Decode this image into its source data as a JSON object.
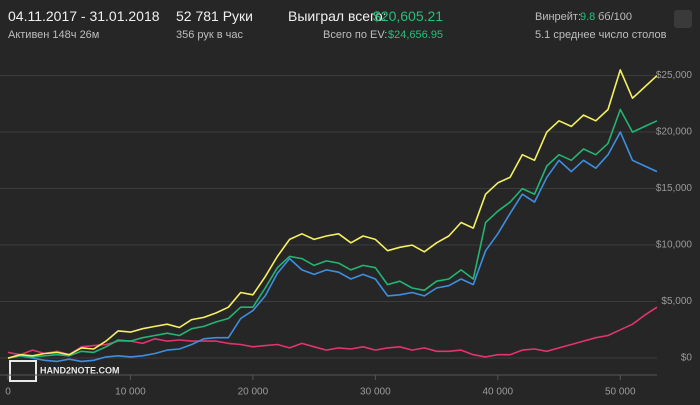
{
  "header": {
    "dates": "04.11.2017 - 31.01.2018",
    "active": "Активен 148ч 26м",
    "hands": "52 781 Руки",
    "rate": "356 рук в час",
    "won_label": "Выиграл всего:",
    "won_value": "$20,605.21",
    "ev_label": "Всего по EV:",
    "ev_value": "$24,656.95",
    "winrate_label": "Винрейт:",
    "winrate_value": "9.8",
    "winrate_unit": "бб/100",
    "tables": "5.1 среднее число столов",
    "logo": "HAND2NOTE.COM"
  },
  "chart_data": {
    "type": "line",
    "x": [
      0,
      1000,
      2000,
      3000,
      4000,
      5000,
      6000,
      7000,
      8000,
      9000,
      10000,
      11000,
      12000,
      13000,
      14000,
      15000,
      16000,
      17000,
      18000,
      19000,
      20000,
      21000,
      22000,
      23000,
      24000,
      25000,
      26000,
      27000,
      28000,
      29000,
      30000,
      31000,
      32000,
      33000,
      34000,
      35000,
      36000,
      37000,
      38000,
      39000,
      40000,
      41000,
      42000,
      43000,
      44000,
      45000,
      46000,
      47000,
      48000,
      49000,
      50000,
      51000,
      52000,
      53000
    ],
    "series": [
      {
        "color": "#f5f060",
        "values": [
          0,
          300,
          200,
          400,
          500,
          300,
          900,
          800,
          1500,
          2400,
          2300,
          2600,
          2800,
          3000,
          2700,
          3400,
          3600,
          4000,
          4500,
          5800,
          5600,
          7200,
          9000,
          10500,
          11000,
          10500,
          10800,
          11000,
          10200,
          10800,
          10500,
          9500,
          9800,
          10000,
          9400,
          10200,
          10800,
          12000,
          11500,
          14500,
          15500,
          16000,
          18000,
          17500,
          20000,
          21000,
          20500,
          21500,
          21000,
          22000,
          25500,
          23000,
          24000,
          25000
        ]
      },
      {
        "color": "#22b573",
        "values": [
          0,
          200,
          100,
          200,
          300,
          200,
          600,
          500,
          1000,
          1600,
          1500,
          1800,
          2000,
          2200,
          2000,
          2600,
          2800,
          3200,
          3500,
          4500,
          4500,
          6200,
          8000,
          9000,
          8800,
          8200,
          8600,
          8400,
          7800,
          8200,
          8000,
          6500,
          6800,
          6200,
          6000,
          6800,
          7000,
          7800,
          7000,
          12000,
          13000,
          13800,
          15000,
          14500,
          17000,
          18000,
          17500,
          18500,
          18000,
          19000,
          22000,
          20000,
          20500,
          21000
        ]
      },
      {
        "color": "#3d8fe0",
        "values": [
          0,
          200,
          0,
          -200,
          -300,
          -100,
          -300,
          -200,
          100,
          200,
          100,
          200,
          400,
          700,
          800,
          1200,
          1700,
          1800,
          1800,
          3500,
          4200,
          5500,
          7500,
          8800,
          7800,
          7400,
          7800,
          7600,
          7000,
          7400,
          7000,
          5500,
          5600,
          5800,
          5500,
          6200,
          6400,
          7000,
          6500,
          9500,
          11000,
          12800,
          14500,
          13800,
          16000,
          17500,
          16500,
          17500,
          16800,
          18000,
          20000,
          17500,
          17000,
          16500
        ]
      },
      {
        "color": "#e0356e",
        "values": [
          500,
          300,
          700,
          400,
          600,
          300,
          1000,
          1100,
          1200,
          1500,
          1500,
          1300,
          1700,
          1500,
          1600,
          1500,
          1500,
          1500,
          1300,
          1200,
          1000,
          1100,
          1200,
          900,
          1300,
          1000,
          700,
          900,
          800,
          1000,
          700,
          900,
          1000,
          700,
          900,
          600,
          600,
          700,
          300,
          100,
          300,
          300,
          700,
          800,
          600,
          900,
          1200,
          1500,
          1800,
          2000,
          2500,
          3000,
          3800,
          4500
        ]
      }
    ],
    "xlim": [
      0,
      53000
    ],
    "ylim": [
      -1500,
      26200
    ],
    "xticks": [
      0,
      {
        "value": 10000,
        "label": "10 000"
      },
      {
        "value": 20000,
        "label": "20 000"
      },
      {
        "value": 30000,
        "label": "30 000"
      },
      {
        "value": 40000,
        "label": "40 000"
      },
      {
        "value": 50000,
        "label": "50 000"
      }
    ],
    "yticks": [
      {
        "value": 0,
        "label": "$0"
      },
      {
        "value": 5000,
        "label": "$5,000"
      },
      {
        "value": 10000,
        "label": "$10,000"
      },
      {
        "value": 15000,
        "label": "$15,000"
      },
      {
        "value": 20000,
        "label": "$20,000"
      },
      {
        "value": 25000,
        "label": "$25,000"
      }
    ],
    "grid": true
  }
}
